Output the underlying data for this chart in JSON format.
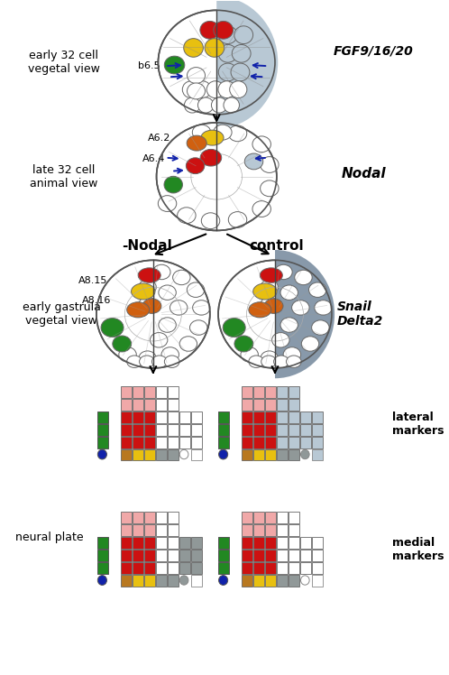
{
  "bg_color": "#ffffff",
  "colors": {
    "red": "#cc1111",
    "orange": "#d06010",
    "yellow": "#e8c010",
    "green": "#228822",
    "gray_dark": "#8899aa",
    "gray_light": "#b8c8d4",
    "gray_med": "#909898",
    "pink_light": "#f0a8a8",
    "blue": "#1122aa",
    "gold": "#b87820",
    "white": "#ffffff",
    "cell_line": "#888888",
    "outline": "#555555"
  },
  "labels": {
    "stage1": "early 32 cell\nvegetal view",
    "stage2": "late 32 cell\nanimal view",
    "stage3": "early gastrula\nvegetal view",
    "stage4": "neural plate",
    "gene1": "FGF9/16/20",
    "gene2": "Nodal",
    "gene3_1": "Snail",
    "gene3_2": "Delta2",
    "cond1": "-Nodal",
    "cond2": "control",
    "lat": "lateral\nmarkers",
    "med": "medial\nmarkers",
    "b65": "b6.5",
    "a62": "A6.2",
    "a64": "A6.4",
    "a815": "A8.15",
    "a816": "A8.16"
  }
}
